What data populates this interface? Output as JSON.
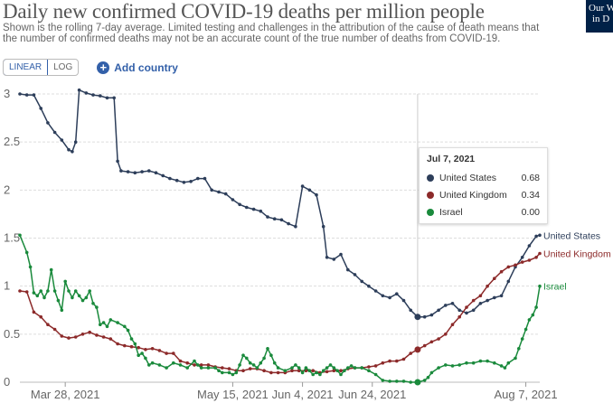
{
  "header": {
    "title": "Daily new confirmed COVID-19 deaths per million people",
    "subtitle": "Shown is the rolling 7-day average. Limited testing and challenges in the attribution of the cause of death means that the number of confirmed deaths may not be an accurate count of the true number of deaths from COVID-19.",
    "logo_line1": "Our W",
    "logo_line2": "in D"
  },
  "controls": {
    "linear_label": "LINEAR",
    "log_label": "LOG",
    "add_country_label": "Add country",
    "add_icon": "plus-circle-icon"
  },
  "tooltip": {
    "date": "Jul 7, 2021",
    "rows": [
      {
        "name": "United States",
        "value": "0.68",
        "color": "#2d3e5a"
      },
      {
        "name": "United Kingdom",
        "value": "0.34",
        "color": "#8c2a2a"
      },
      {
        "name": "Israel",
        "value": "0.00",
        "color": "#1a8a3c"
      }
    ]
  },
  "chart_data": {
    "type": "line",
    "x_start": "2021-03-15",
    "x_end": "2021-08-10",
    "ylim": [
      0,
      3
    ],
    "y_ticks": [
      0,
      0.5,
      1,
      1.5,
      2,
      2.5,
      3
    ],
    "y_tick_labels": [
      "0",
      "0.5",
      "1",
      "1.5",
      "2",
      "2.5",
      "3"
    ],
    "x_tick_labels": [
      "Mar 28, 2021",
      "May 15, 2021",
      "Jun 4, 2021",
      "Jun 24, 2021",
      "Aug 7, 2021"
    ],
    "x_tick_days": [
      13,
      61,
      81,
      101,
      145
    ],
    "hover_day": 114,
    "grid": true,
    "legend": "end-labels",
    "series": [
      {
        "name": "United States",
        "color": "#2d3e5a",
        "end_label": "United States",
        "points": [
          [
            0,
            3.0
          ],
          [
            2,
            2.99
          ],
          [
            4,
            2.99
          ],
          [
            6,
            2.85
          ],
          [
            8,
            2.7
          ],
          [
            10,
            2.6
          ],
          [
            12,
            2.52
          ],
          [
            14,
            2.42
          ],
          [
            15,
            2.4
          ],
          [
            16,
            2.5
          ],
          [
            17,
            3.04
          ],
          [
            19,
            3.01
          ],
          [
            21,
            2.99
          ],
          [
            23,
            2.98
          ],
          [
            25,
            2.96
          ],
          [
            27,
            2.96
          ],
          [
            28,
            2.3
          ],
          [
            29,
            2.2
          ],
          [
            31,
            2.19
          ],
          [
            33,
            2.18
          ],
          [
            35,
            2.19
          ],
          [
            37,
            2.2
          ],
          [
            39,
            2.18
          ],
          [
            41,
            2.15
          ],
          [
            43,
            2.12
          ],
          [
            45,
            2.1
          ],
          [
            47,
            2.08
          ],
          [
            49,
            2.09
          ],
          [
            51,
            2.12
          ],
          [
            53,
            2.12
          ],
          [
            55,
            2.0
          ],
          [
            57,
            1.98
          ],
          [
            59,
            1.96
          ],
          [
            61,
            1.9
          ],
          [
            63,
            1.85
          ],
          [
            65,
            1.82
          ],
          [
            67,
            1.8
          ],
          [
            69,
            1.78
          ],
          [
            71,
            1.72
          ],
          [
            73,
            1.7
          ],
          [
            75,
            1.69
          ],
          [
            77,
            1.65
          ],
          [
            79,
            1.62
          ],
          [
            81,
            2.04
          ],
          [
            83,
            2.0
          ],
          [
            85,
            1.95
          ],
          [
            87,
            1.62
          ],
          [
            88,
            1.3
          ],
          [
            90,
            1.28
          ],
          [
            92,
            1.33
          ],
          [
            94,
            1.17
          ],
          [
            96,
            1.12
          ],
          [
            98,
            1.05
          ],
          [
            100,
            1.0
          ],
          [
            102,
            0.95
          ],
          [
            104,
            0.9
          ],
          [
            106,
            0.88
          ],
          [
            108,
            0.92
          ],
          [
            110,
            0.85
          ],
          [
            112,
            0.75
          ],
          [
            114,
            0.68
          ],
          [
            116,
            0.68
          ],
          [
            118,
            0.7
          ],
          [
            120,
            0.75
          ],
          [
            122,
            0.8
          ],
          [
            124,
            0.82
          ],
          [
            126,
            0.75
          ],
          [
            128,
            0.72
          ],
          [
            130,
            0.75
          ],
          [
            132,
            0.82
          ],
          [
            134,
            0.85
          ],
          [
            136,
            0.88
          ],
          [
            138,
            0.9
          ],
          [
            140,
            1.05
          ],
          [
            142,
            1.2
          ],
          [
            144,
            1.3
          ],
          [
            146,
            1.42
          ],
          [
            148,
            1.52
          ],
          [
            149,
            1.53
          ]
        ]
      },
      {
        "name": "United Kingdom",
        "color": "#8c2a2a",
        "end_label": "United Kingdom",
        "points": [
          [
            0,
            0.95
          ],
          [
            2,
            0.94
          ],
          [
            4,
            0.73
          ],
          [
            6,
            0.68
          ],
          [
            8,
            0.6
          ],
          [
            10,
            0.55
          ],
          [
            12,
            0.48
          ],
          [
            14,
            0.46
          ],
          [
            16,
            0.47
          ],
          [
            18,
            0.5
          ],
          [
            20,
            0.52
          ],
          [
            22,
            0.49
          ],
          [
            24,
            0.47
          ],
          [
            26,
            0.45
          ],
          [
            28,
            0.4
          ],
          [
            30,
            0.38
          ],
          [
            32,
            0.37
          ],
          [
            34,
            0.36
          ],
          [
            36,
            0.34
          ],
          [
            38,
            0.35
          ],
          [
            40,
            0.33
          ],
          [
            42,
            0.3
          ],
          [
            44,
            0.3
          ],
          [
            46,
            0.22
          ],
          [
            48,
            0.2
          ],
          [
            50,
            0.18
          ],
          [
            52,
            0.18
          ],
          [
            54,
            0.18
          ],
          [
            56,
            0.16
          ],
          [
            58,
            0.15
          ],
          [
            60,
            0.14
          ],
          [
            62,
            0.12
          ],
          [
            64,
            0.12
          ],
          [
            66,
            0.14
          ],
          [
            68,
            0.14
          ],
          [
            70,
            0.12
          ],
          [
            72,
            0.1
          ],
          [
            74,
            0.1
          ],
          [
            76,
            0.1
          ],
          [
            78,
            0.12
          ],
          [
            80,
            0.12
          ],
          [
            82,
            0.12
          ],
          [
            84,
            0.12
          ],
          [
            86,
            0.1
          ],
          [
            88,
            0.11
          ],
          [
            90,
            0.12
          ],
          [
            92,
            0.12
          ],
          [
            94,
            0.14
          ],
          [
            96,
            0.15
          ],
          [
            98,
            0.15
          ],
          [
            100,
            0.16
          ],
          [
            102,
            0.17
          ],
          [
            104,
            0.2
          ],
          [
            106,
            0.22
          ],
          [
            108,
            0.22
          ],
          [
            110,
            0.24
          ],
          [
            112,
            0.3
          ],
          [
            114,
            0.34
          ],
          [
            116,
            0.38
          ],
          [
            118,
            0.42
          ],
          [
            120,
            0.45
          ],
          [
            122,
            0.5
          ],
          [
            124,
            0.6
          ],
          [
            126,
            0.68
          ],
          [
            128,
            0.78
          ],
          [
            130,
            0.85
          ],
          [
            132,
            0.9
          ],
          [
            134,
            1.0
          ],
          [
            136,
            1.08
          ],
          [
            138,
            1.15
          ],
          [
            140,
            1.2
          ],
          [
            142,
            1.22
          ],
          [
            144,
            1.25
          ],
          [
            146,
            1.27
          ],
          [
            148,
            1.3
          ],
          [
            149,
            1.34
          ]
        ]
      },
      {
        "name": "Israel",
        "color": "#1a8a3c",
        "end_label": "Israel",
        "points": [
          [
            0,
            1.53
          ],
          [
            2,
            1.35
          ],
          [
            3,
            1.2
          ],
          [
            4,
            0.93
          ],
          [
            5,
            0.9
          ],
          [
            6,
            0.95
          ],
          [
            7,
            0.88
          ],
          [
            8,
            0.95
          ],
          [
            9,
            1.17
          ],
          [
            10,
            0.95
          ],
          [
            11,
            0.85
          ],
          [
            12,
            0.75
          ],
          [
            13,
            1.05
          ],
          [
            14,
            0.95
          ],
          [
            15,
            0.88
          ],
          [
            16,
            0.95
          ],
          [
            17,
            0.9
          ],
          [
            18,
            0.85
          ],
          [
            19,
            0.88
          ],
          [
            20,
            0.95
          ],
          [
            21,
            0.82
          ],
          [
            22,
            0.78
          ],
          [
            23,
            0.6
          ],
          [
            24,
            0.62
          ],
          [
            25,
            0.58
          ],
          [
            26,
            0.65
          ],
          [
            28,
            0.62
          ],
          [
            30,
            0.58
          ],
          [
            31,
            0.54
          ],
          [
            32,
            0.45
          ],
          [
            33,
            0.4
          ],
          [
            34,
            0.28
          ],
          [
            35,
            0.3
          ],
          [
            36,
            0.25
          ],
          [
            37,
            0.18
          ],
          [
            38,
            0.2
          ],
          [
            40,
            0.18
          ],
          [
            42,
            0.15
          ],
          [
            44,
            0.2
          ],
          [
            46,
            0.18
          ],
          [
            48,
            0.15
          ],
          [
            50,
            0.22
          ],
          [
            51,
            0.18
          ],
          [
            52,
            0.15
          ],
          [
            54,
            0.15
          ],
          [
            56,
            0.15
          ],
          [
            57,
            0.12
          ],
          [
            58,
            0.1
          ],
          [
            60,
            0.1
          ],
          [
            61,
            0.08
          ],
          [
            62,
            0.1
          ],
          [
            63,
            0.18
          ],
          [
            64,
            0.28
          ],
          [
            65,
            0.25
          ],
          [
            66,
            0.2
          ],
          [
            67,
            0.18
          ],
          [
            68,
            0.15
          ],
          [
            69,
            0.2
          ],
          [
            70,
            0.25
          ],
          [
            71,
            0.35
          ],
          [
            72,
            0.28
          ],
          [
            73,
            0.2
          ],
          [
            74,
            0.15
          ],
          [
            76,
            0.12
          ],
          [
            78,
            0.15
          ],
          [
            79,
            0.18
          ],
          [
            80,
            0.15
          ],
          [
            81,
            0.1
          ],
          [
            82,
            0.15
          ],
          [
            83,
            0.12
          ],
          [
            84,
            0.08
          ],
          [
            85,
            0.1
          ],
          [
            86,
            0.08
          ],
          [
            87,
            0.12
          ],
          [
            88,
            0.15
          ],
          [
            89,
            0.18
          ],
          [
            90,
            0.15
          ],
          [
            91,
            0.12
          ],
          [
            92,
            0.08
          ],
          [
            93,
            0.12
          ],
          [
            94,
            0.15
          ],
          [
            95,
            0.17
          ],
          [
            96,
            0.15
          ],
          [
            98,
            0.15
          ],
          [
            100,
            0.12
          ],
          [
            102,
            0.08
          ],
          [
            104,
            0.02
          ],
          [
            106,
            0.01
          ],
          [
            108,
            0.01
          ],
          [
            110,
            0.01
          ],
          [
            112,
            0.0
          ],
          [
            114,
            0.0
          ],
          [
            116,
            0.02
          ],
          [
            117,
            0.05
          ],
          [
            118,
            0.1
          ],
          [
            120,
            0.15
          ],
          [
            122,
            0.18
          ],
          [
            124,
            0.17
          ],
          [
            126,
            0.18
          ],
          [
            128,
            0.2
          ],
          [
            130,
            0.2
          ],
          [
            132,
            0.22
          ],
          [
            134,
            0.22
          ],
          [
            136,
            0.2
          ],
          [
            138,
            0.17
          ],
          [
            139,
            0.15
          ],
          [
            140,
            0.2
          ],
          [
            142,
            0.25
          ],
          [
            143,
            0.35
          ],
          [
            144,
            0.45
          ],
          [
            145,
            0.55
          ],
          [
            146,
            0.65
          ],
          [
            147,
            0.7
          ],
          [
            148,
            0.78
          ],
          [
            149,
            1.0
          ]
        ]
      }
    ]
  }
}
